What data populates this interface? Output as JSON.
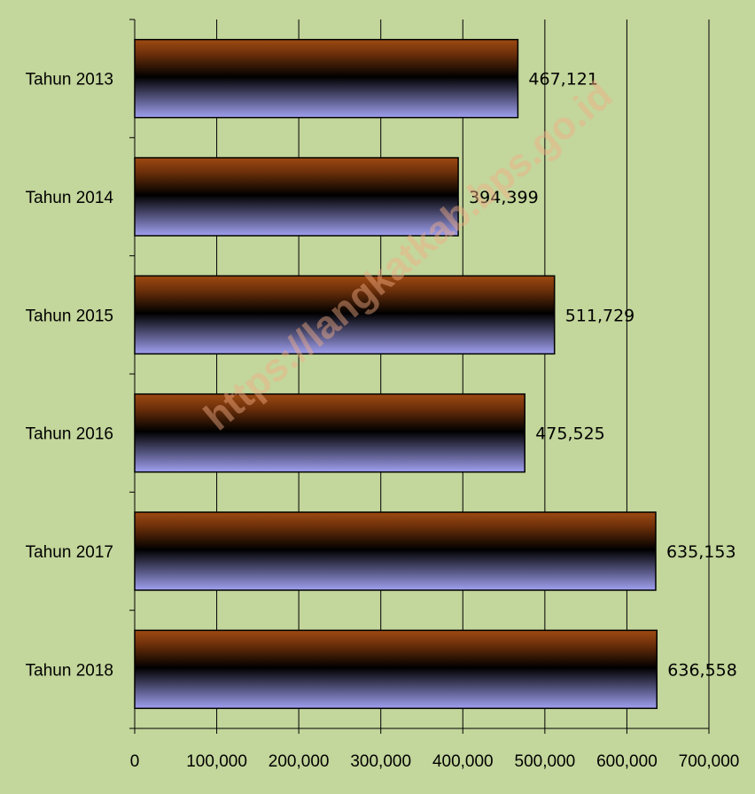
{
  "watermark": "https://langkatkab.bps.go.id",
  "chart_data": {
    "type": "bar",
    "orientation": "horizontal",
    "categories": [
      "Tahun 2013",
      "Tahun 2014",
      "Tahun 2015",
      "Tahun 2016",
      "Tahun 2017",
      "Tahun 2018"
    ],
    "values": [
      467121,
      394399,
      511729,
      475525,
      635153,
      636558
    ],
    "data_labels": [
      "467,121",
      "394,399",
      "511,729",
      "475,525",
      "635,153",
      "636,558"
    ],
    "x_ticks": [
      "0",
      "100,000",
      "200,000",
      "300,000",
      "400,000",
      "500,000",
      "600,000",
      "700,000"
    ],
    "xlim": [
      0,
      700000
    ],
    "grid": true,
    "legend": "none",
    "colors": {
      "background": "#c3d69b",
      "bar_top": "#9e4a12",
      "bar_mid": "#000000",
      "bar_bottom": "#a0a0f0",
      "gridline": "#000000"
    }
  }
}
